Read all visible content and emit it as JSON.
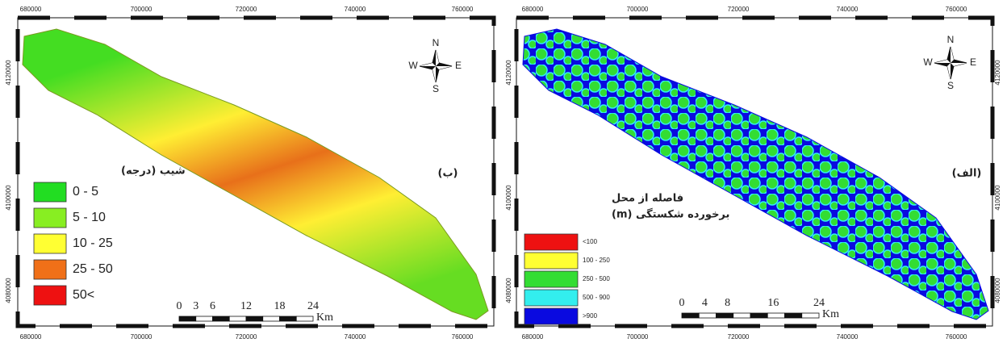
{
  "panels": [
    {
      "label": "(ب)",
      "top_ticks": [
        "680000",
        "700000",
        "720000",
        "740000",
        "760000"
      ],
      "bottom_ticks": [
        "680000",
        "700000",
        "720000",
        "740000",
        "760000"
      ],
      "left_ticks": [
        "4120000",
        "4100000",
        "4080000"
      ],
      "legend": {
        "title": [
          "شیب (درجه)"
        ],
        "items": [
          {
            "label": "0 - 5",
            "color": "#22dd22"
          },
          {
            "label": "5 - 10",
            "color": "#88ee22"
          },
          {
            "label": "10 - 25",
            "color": "#ffff33"
          },
          {
            "label": "25 - 50",
            "color": "#f07018"
          },
          {
            "label": "50<",
            "color": "#ee1111"
          }
        ]
      },
      "scale": {
        "ticks": [
          "0",
          "3",
          "6",
          "12",
          "18",
          "24"
        ],
        "unit": "Km"
      },
      "north": {
        "n": "N",
        "s": "S",
        "e": "E",
        "w": "W"
      }
    },
    {
      "label": "(الف)",
      "top_ticks": [
        "680000",
        "700000",
        "720000",
        "740000",
        "760000"
      ],
      "bottom_ticks": [
        "680000",
        "700000",
        "720000",
        "740000",
        "760000"
      ],
      "left_ticks": [
        "4120000",
        "4100000",
        "4080000"
      ],
      "right_ticks": [
        "4120000",
        "4100000",
        "4080000"
      ],
      "legend": {
        "title": [
          "فاصله از محل",
          "برخورده شکستگی (m)"
        ],
        "items": [
          {
            "label": "<100",
            "color": "#ee1111"
          },
          {
            "label": "100 - 250",
            "color": "#ffff33"
          },
          {
            "label": "250 - 500",
            "color": "#33dd33"
          },
          {
            "label": "500 - 900",
            "color": "#33eeee"
          },
          {
            "label": ">900",
            "color": "#0a0ae0"
          }
        ]
      },
      "scale": {
        "ticks": [
          "0",
          "4",
          "8",
          "16",
          "24"
        ],
        "unit": "Km"
      },
      "north": {
        "n": "N",
        "s": "S",
        "e": "E",
        "w": "W"
      }
    }
  ]
}
